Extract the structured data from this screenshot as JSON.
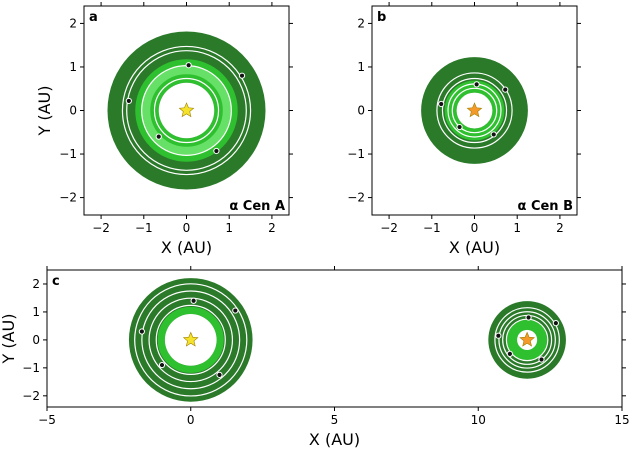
{
  "chart_data": [
    {
      "type": "scatter",
      "panel_label": "a",
      "star_label": "α Cen A",
      "xlabel": "X (AU)",
      "ylabel": "Y (AU)",
      "xlim": [
        -2.4,
        2.4
      ],
      "ylim": [
        -2.4,
        2.4
      ],
      "xticks": [
        -2,
        -1,
        0,
        1,
        2
      ],
      "yticks": [
        -2,
        -1,
        0,
        1,
        2
      ],
      "zones": [
        {
          "kind": "outer",
          "r_in": 0,
          "r_out": 1.85,
          "color": "#2a7a2a"
        },
        {
          "kind": "inner",
          "r_in": 0.65,
          "r_out": 1.2,
          "color": "#2fc02f"
        },
        {
          "kind": "core",
          "r_in": 0.85,
          "r_out": 1.05,
          "color": "#66e066"
        }
      ],
      "orbits": [
        0.75,
        1.05,
        1.4,
        1.5
      ],
      "planets": [
        [
          0.05,
          1.04
        ],
        [
          -0.65,
          -0.6
        ],
        [
          0.7,
          -0.93
        ],
        [
          -1.35,
          0.22
        ],
        [
          1.3,
          0.8
        ]
      ],
      "star": {
        "x": 0,
        "y": 0,
        "color": "#f5e22a"
      }
    },
    {
      "type": "scatter",
      "panel_label": "b",
      "star_label": "α Cen B",
      "xlabel": "X (AU)",
      "ylabel": "Y (AU)",
      "xlim": [
        -2.4,
        2.4
      ],
      "ylim": [
        -2.4,
        2.4
      ],
      "xticks": [
        -2,
        -1,
        0,
        1,
        2
      ],
      "yticks": [
        -2,
        -1,
        0,
        1,
        2
      ],
      "zones": [
        {
          "kind": "outer",
          "r_in": 0,
          "r_out": 1.25,
          "color": "#2a7a2a"
        },
        {
          "kind": "inner",
          "r_in": 0.42,
          "r_out": 0.7,
          "color": "#2fc02f"
        }
      ],
      "orbits": [
        0.52,
        0.62,
        0.75,
        0.88
      ],
      "planets": [
        [
          0.05,
          0.6
        ],
        [
          -0.35,
          -0.38
        ],
        [
          0.45,
          -0.55
        ],
        [
          -0.78,
          0.15
        ],
        [
          0.72,
          0.48
        ]
      ],
      "star": {
        "x": 0,
        "y": 0,
        "color": "#f59a2a"
      }
    },
    {
      "type": "scatter",
      "panel_label": "c",
      "xlabel": "X (AU)",
      "ylabel": "Y (AU)",
      "xlim": [
        -5,
        15
      ],
      "ylim": [
        -2.4,
        2.5
      ],
      "xticks": [
        -5,
        0,
        5,
        10,
        15
      ],
      "yticks": [
        -2,
        -1,
        0,
        1,
        2
      ],
      "systems": [
        {
          "cx": 0,
          "cy": 0,
          "zones": [
            {
              "kind": "outer",
              "r_in": 0,
              "r_out": 2.15,
              "color": "#2a7a2a"
            },
            {
              "kind": "inner",
              "r_in": 0.9,
              "r_out": 1.15,
              "color": "#2fc02f"
            }
          ],
          "orbits": [
            1.2,
            1.45,
            1.7,
            1.95
          ],
          "planets": [
            [
              1.55,
              1.05
            ],
            [
              0.1,
              1.4
            ],
            [
              -1.7,
              0.3
            ],
            [
              -1.0,
              -0.9
            ],
            [
              1.0,
              -1.25
            ]
          ],
          "star": {
            "x": 0,
            "y": 0,
            "color": "#f5e22a"
          }
        },
        {
          "cx": 11.7,
          "cy": 0,
          "zones": [
            {
              "kind": "outer",
              "r_in": 0,
              "r_out": 1.35,
              "color": "#2a7a2a"
            },
            {
              "kind": "inner",
              "r_in": 0.35,
              "r_out": 0.7,
              "color": "#2fc02f"
            }
          ],
          "orbits": [
            0.72,
            0.85,
            0.98,
            1.12
          ],
          "planets": [
            [
              0.05,
              0.8
            ],
            [
              1.0,
              0.6
            ],
            [
              -1.0,
              0.15
            ],
            [
              -0.6,
              -0.5
            ],
            [
              0.5,
              -0.7
            ]
          ],
          "star": {
            "x": 11.7,
            "y": 0,
            "color": "#f59a2a"
          }
        }
      ]
    }
  ]
}
